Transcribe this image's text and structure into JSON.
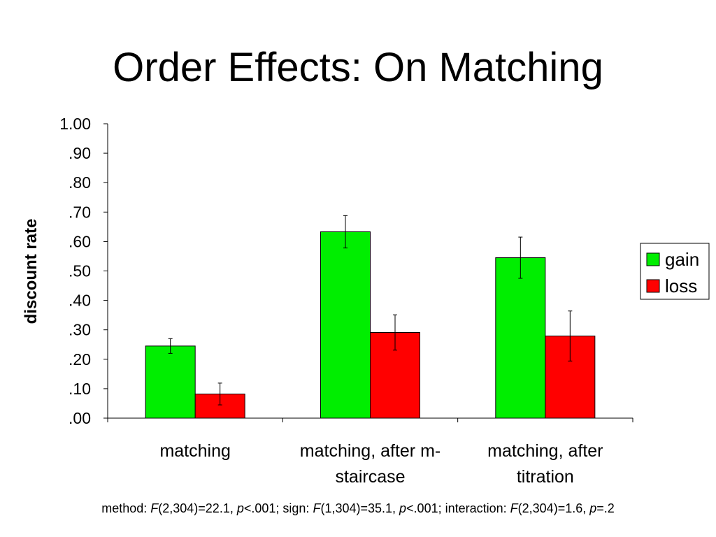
{
  "slide": {
    "title": "Order Effects: On Matching",
    "stats": {
      "method_label": "method: ",
      "method_F": "F",
      "method_args": "(2,304)=22.1, ",
      "method_p": "p",
      "method_pval": "<.001; sign: ",
      "sign_F": "F",
      "sign_args": "(1,304)=35.1, ",
      "sign_p": "p",
      "sign_pval": "<.001; interaction: ",
      "inter_F": "F",
      "inter_args": "(2,304)=1.6, ",
      "inter_p": "p",
      "inter_pval": "=.2"
    }
  },
  "chart_data": {
    "type": "bar",
    "ylabel": "discount rate",
    "xlabel": "",
    "ylim": [
      0,
      1.0
    ],
    "yticks": [
      {
        "value": 0.0,
        "label": ".00"
      },
      {
        "value": 0.1,
        "label": ".10"
      },
      {
        "value": 0.2,
        "label": ".20"
      },
      {
        "value": 0.3,
        "label": ".30"
      },
      {
        "value": 0.4,
        "label": ".40"
      },
      {
        "value": 0.5,
        "label": ".50"
      },
      {
        "value": 0.6,
        "label": ".60"
      },
      {
        "value": 0.7,
        "label": ".70"
      },
      {
        "value": 0.8,
        "label": ".80"
      },
      {
        "value": 0.9,
        "label": ".90"
      },
      {
        "value": 1.0,
        "label": "1.00"
      }
    ],
    "categories": [
      [
        "matching"
      ],
      [
        "matching, after m-",
        "staircase"
      ],
      [
        "matching, after",
        "titration"
      ]
    ],
    "series": [
      {
        "name": "gain",
        "color": "#00ee00",
        "values": [
          0.245,
          0.633,
          0.545
        ],
        "errors": [
          0.025,
          0.055,
          0.07
        ]
      },
      {
        "name": "loss",
        "color": "#ff0000",
        "values": [
          0.082,
          0.291,
          0.279
        ],
        "errors": [
          0.037,
          0.06,
          0.085
        ]
      }
    ],
    "grid": false,
    "legend": "right"
  }
}
